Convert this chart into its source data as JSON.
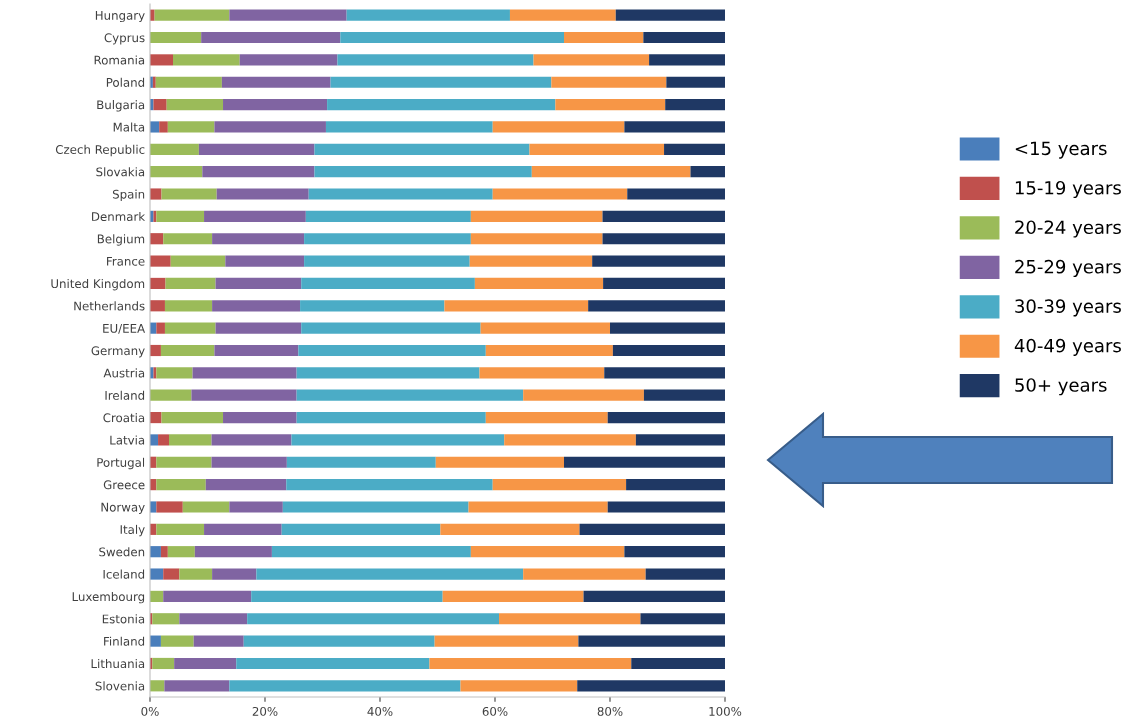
{
  "chart_data": {
    "type": "bar",
    "orientation": "horizontal",
    "stacked": true,
    "categories": [
      "Hungary",
      "Cyprus",
      "Romania",
      "Poland",
      "Bulgaria",
      "Malta",
      "Czech Republic",
      "Slovakia",
      "Spain",
      "Denmark",
      "Belgium",
      "France",
      "United Kingdom",
      "Netherlands",
      "EU/EEA",
      "Germany",
      "Austria",
      "Ireland",
      "Croatia",
      "Latvia",
      "Portugal",
      "Greece",
      "Norway",
      "Italy",
      "Sweden",
      "Iceland",
      "Luxembourg",
      "Estonia",
      "Finland",
      "Lithuania",
      "Slovenia"
    ],
    "series": [
      {
        "name": "<15 years",
        "color": "#4a7ebb",
        "values": [
          null,
          0,
          0,
          0.5,
          0.6,
          1.6,
          0,
          0,
          0,
          0.6,
          0,
          0,
          0,
          0,
          1.1,
          0,
          0.6,
          0,
          0,
          1.4,
          0,
          0,
          1.1,
          0,
          1.9,
          2.3,
          0,
          0,
          1.9,
          0,
          0
        ]
      },
      {
        "name": "15-19 years",
        "color": "#c0504d",
        "values": [
          0.8,
          0,
          4.0,
          0.5,
          2.3,
          1.5,
          0,
          0,
          2.0,
          0.5,
          2.3,
          3.6,
          2.7,
          2.6,
          1.5,
          1.9,
          0.5,
          0,
          2.0,
          1.9,
          1.1,
          1.1,
          4.6,
          1.1,
          1.2,
          2.8,
          0,
          0.4,
          0,
          0.4,
          0
        ]
      },
      {
        "name": "20-24 years",
        "color": "#9bbb59",
        "values": [
          13.0,
          8.9,
          11.6,
          11.5,
          9.8,
          8.1,
          8.5,
          9.1,
          9.6,
          8.3,
          8.5,
          9.5,
          8.7,
          8.2,
          8.8,
          9.3,
          6.3,
          7.2,
          10.7,
          7.4,
          9.6,
          8.6,
          8.1,
          8.3,
          4.7,
          5.7,
          2.3,
          4.7,
          5.7,
          3.8,
          2.5
        ]
      },
      {
        "name": "25-29 years",
        "color": "#8064a2",
        "values": [
          20.4,
          24.2,
          17.0,
          18.9,
          18.1,
          19.4,
          20.1,
          19.5,
          16.0,
          17.7,
          16.0,
          13.7,
          14.9,
          15.3,
          14.9,
          14.6,
          18.1,
          18.3,
          12.8,
          13.9,
          13.1,
          14.0,
          9.3,
          13.5,
          13.4,
          7.7,
          15.3,
          11.8,
          8.7,
          10.8,
          11.3
        ]
      },
      {
        "name": "30-39 years",
        "color": "#4bacc6",
        "values": [
          28.4,
          38.9,
          34.1,
          38.4,
          39.7,
          29.0,
          37.4,
          37.8,
          32.0,
          28.7,
          29.0,
          28.8,
          30.2,
          25.1,
          31.2,
          32.6,
          31.8,
          39.4,
          32.9,
          37.0,
          25.9,
          35.9,
          32.3,
          27.6,
          34.6,
          46.4,
          33.3,
          43.8,
          33.2,
          33.6,
          40.2
        ]
      },
      {
        "name": "40-49 years",
        "color": "#f79646",
        "values": [
          18.4,
          13.8,
          20.1,
          20.0,
          19.1,
          22.9,
          23.4,
          27.6,
          23.4,
          22.9,
          22.9,
          21.3,
          22.3,
          25.0,
          22.5,
          22.1,
          21.7,
          21.0,
          21.2,
          22.9,
          22.3,
          23.2,
          24.2,
          24.2,
          26.7,
          21.3,
          24.5,
          24.6,
          25.0,
          35.1,
          20.3
        ]
      },
      {
        "name": "50+ years",
        "color": "#1f3864",
        "values": [
          19.0,
          14.2,
          13.2,
          10.2,
          10.4,
          17.5,
          10.6,
          6.0,
          17.0,
          21.3,
          21.3,
          23.1,
          21.2,
          23.8,
          20.0,
          19.5,
          21.0,
          14.1,
          20.4,
          15.5,
          28.0,
          17.2,
          20.4,
          25.3,
          17.5,
          13.8,
          24.6,
          14.7,
          25.5,
          16.3,
          25.7
        ]
      }
    ],
    "xlim": [
      0,
      100
    ],
    "xticks": [
      {
        "value": 0,
        "label": "0%"
      },
      {
        "value": 20,
        "label": "20%"
      },
      {
        "value": 40,
        "label": "40%"
      },
      {
        "value": 60,
        "label": "60%"
      },
      {
        "value": 80,
        "label": "80%"
      },
      {
        "value": 100,
        "label": "100%"
      }
    ],
    "legend": "right",
    "grid": false
  }
}
